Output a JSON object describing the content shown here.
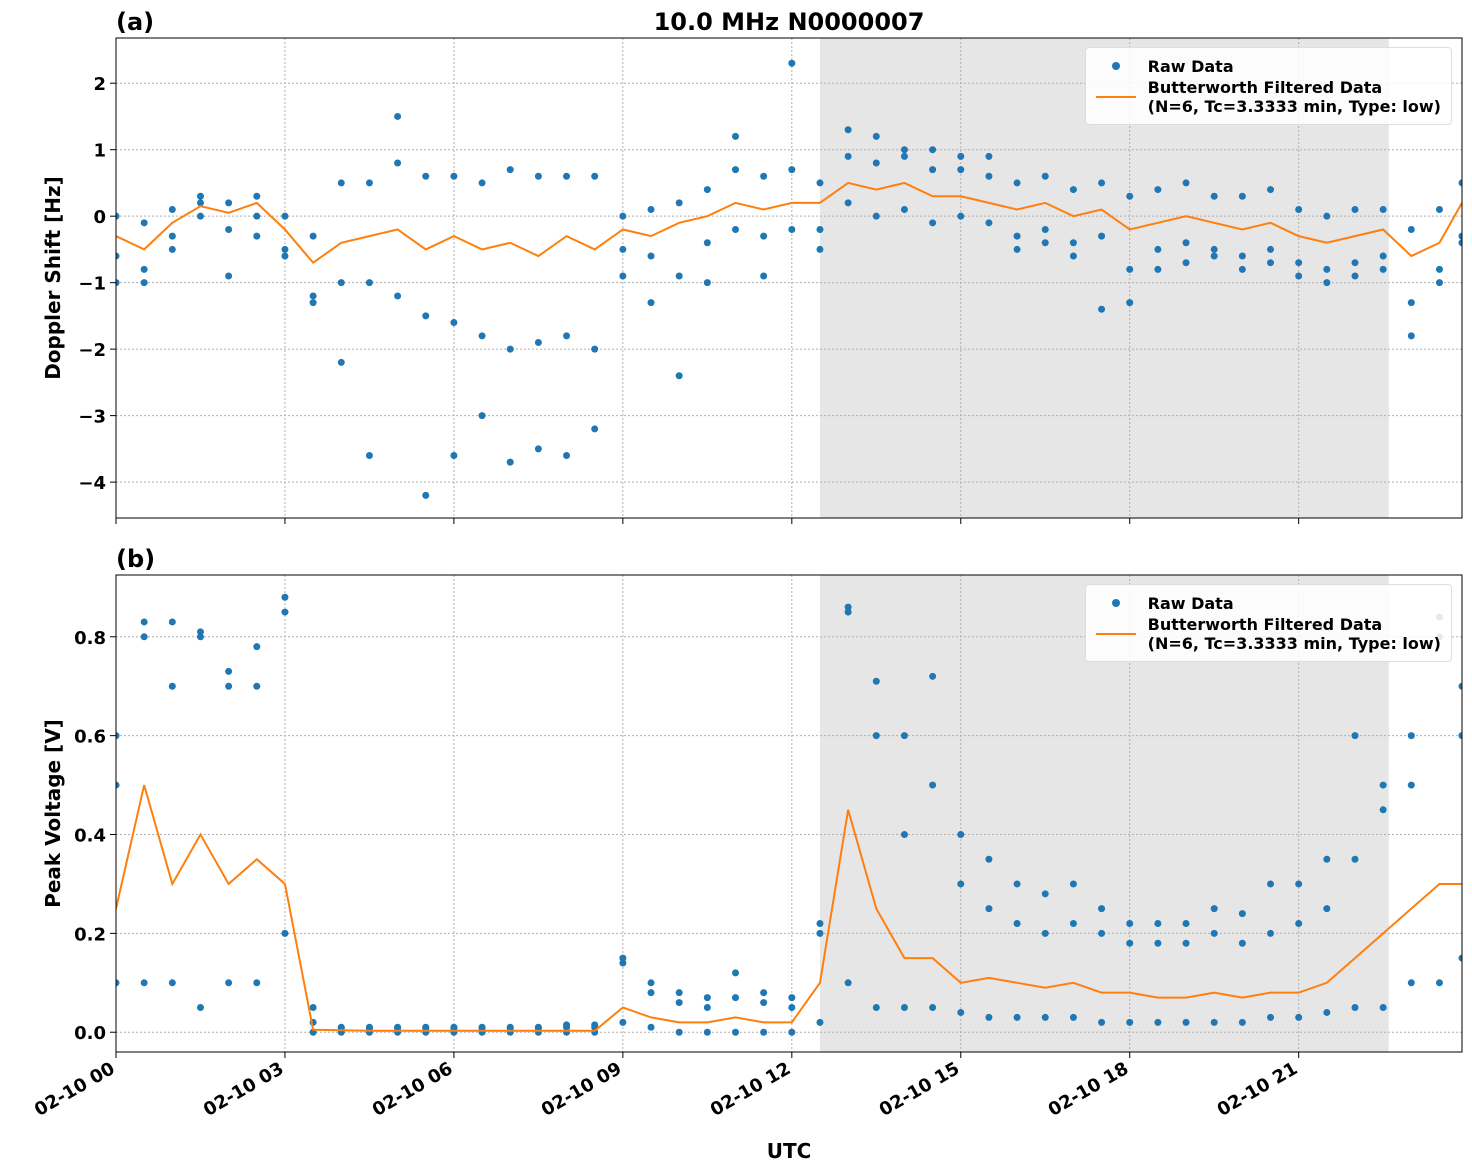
{
  "chart_data": [
    {
      "type": "line",
      "title": "10.0 MHz N0000007",
      "panel_label": "(a)",
      "ylabel": "Doppler Shift [Hz]",
      "xlim": [
        0,
        23.9
      ],
      "ylim": [
        -4.54,
        2.68
      ],
      "grid": true,
      "legend": "upper right",
      "shade": [
        12.5,
        22.6
      ],
      "xtick_labels": false,
      "xticks": [
        0,
        3,
        6,
        9,
        12,
        15,
        18,
        21
      ],
      "yticks": [
        {
          "value": -4,
          "label": "−4"
        },
        {
          "value": -3,
          "label": "−3"
        },
        {
          "value": -2,
          "label": "−2"
        },
        {
          "value": -1,
          "label": "−1"
        },
        0,
        1,
        2
      ],
      "x": [
        0,
        0.5,
        1,
        1.5,
        2,
        2.5,
        3,
        3.5,
        4,
        4.5,
        5,
        5.5,
        6,
        6.5,
        7,
        7.5,
        8,
        8.5,
        9,
        9.5,
        10,
        10.5,
        11,
        11.5,
        12,
        12.5,
        13,
        13.5,
        14,
        14.5,
        15,
        15.5,
        16,
        16.5,
        17,
        17.5,
        18,
        18.5,
        19,
        19.5,
        20,
        20.5,
        21,
        21.5,
        22,
        22.5,
        23,
        23.5,
        23.9
      ],
      "series": [
        {
          "name": "Raw Data",
          "style": "markers",
          "color": "#1f77b4",
          "values": [
            [
              0,
              -0.6,
              -1.0
            ],
            [
              -0.1,
              -0.8,
              -1.0
            ],
            [
              0.1,
              -0.3,
              -0.5
            ],
            [
              0.3,
              0,
              0.2
            ],
            [
              0.2,
              -0.2,
              -0.9
            ],
            [
              0.3,
              0,
              -0.3
            ],
            [
              0,
              -0.5,
              -0.6
            ],
            [
              -0.3,
              -1.2,
              -1.3
            ],
            [
              0.5,
              -1.0,
              -2.2
            ],
            [
              0.5,
              -1.0,
              -3.6
            ],
            [
              0.8,
              -1.2,
              1.5
            ],
            [
              0.6,
              -1.5,
              -4.2
            ],
            [
              0.6,
              -1.6,
              -3.6
            ],
            [
              0.5,
              -1.8,
              -3.0
            ],
            [
              0.7,
              -2.0,
              -3.7
            ],
            [
              0.6,
              -1.9,
              -3.5
            ],
            [
              0.6,
              -1.8,
              -3.6
            ],
            [
              0.6,
              -2.0,
              -3.2
            ],
            [
              0,
              -0.5,
              -0.9
            ],
            [
              0.1,
              -0.6,
              -1.3
            ],
            [
              0.2,
              -0.9,
              -2.4
            ],
            [
              0.4,
              -0.4,
              -1.0
            ],
            [
              0.7,
              -0.2,
              1.2
            ],
            [
              0.6,
              -0.3,
              -0.9
            ],
            [
              0.7,
              -0.2,
              2.3
            ],
            [
              0.5,
              -0.2,
              -0.5
            ],
            [
              0.9,
              0.2,
              1.3
            ],
            [
              0.8,
              0,
              1.2
            ],
            [
              0.9,
              0.1,
              1.0
            ],
            [
              0.7,
              -0.1,
              1.0
            ],
            [
              0.7,
              0,
              0.9
            ],
            [
              0.6,
              -0.1,
              0.9
            ],
            [
              0.5,
              -0.3,
              -0.5
            ],
            [
              0.6,
              -0.2,
              -0.4
            ],
            [
              0.4,
              -0.4,
              -0.6
            ],
            [
              0.5,
              -0.3,
              -1.4
            ],
            [
              0.3,
              -0.8,
              -1.3
            ],
            [
              0.4,
              -0.5,
              -0.8
            ],
            [
              0.5,
              -0.4,
              -0.7
            ],
            [
              0.3,
              -0.5,
              -0.6
            ],
            [
              0.3,
              -0.6,
              -0.8
            ],
            [
              0.4,
              -0.5,
              -0.7
            ],
            [
              0.1,
              -0.7,
              -0.9
            ],
            [
              0,
              -0.8,
              -1.0
            ],
            [
              0.1,
              -0.7,
              -0.9
            ],
            [
              0.1,
              -0.6,
              -0.8
            ],
            [
              -0.2,
              -1.3,
              -1.8
            ],
            [
              0.1,
              -0.8,
              -1.0
            ],
            [
              0.5,
              -0.3,
              -0.4
            ]
          ]
        },
        {
          "name": "Butterworth Filtered Data\n(N=6, Tc=3.3333 min, Type: low)",
          "style": "line",
          "color": "#ff7f0e",
          "values": [
            -0.3,
            -0.5,
            -0.1,
            0.15,
            0.05,
            0.2,
            -0.2,
            -0.7,
            -0.4,
            -0.3,
            -0.2,
            -0.5,
            -0.3,
            -0.5,
            -0.4,
            -0.6,
            -0.3,
            -0.5,
            -0.2,
            -0.3,
            -0.1,
            0,
            0.2,
            0.1,
            0.2,
            0.2,
            0.5,
            0.4,
            0.5,
            0.3,
            0.3,
            0.2,
            0.1,
            0.2,
            0,
            0.1,
            -0.2,
            -0.1,
            0,
            -0.1,
            -0.2,
            -0.1,
            -0.3,
            -0.4,
            -0.3,
            -0.2,
            -0.6,
            -0.4,
            0.2
          ]
        }
      ]
    },
    {
      "type": "line",
      "panel_label": "(b)",
      "ylabel": "Peak Voltage [V]",
      "xlabel": "UTC",
      "xlim": [
        0,
        23.9
      ],
      "ylim": [
        -0.04,
        0.925
      ],
      "grid": true,
      "legend": "upper right",
      "shade": [
        12.5,
        22.6
      ],
      "xticks": [
        {
          "value": 0,
          "label": "02-10 00"
        },
        {
          "value": 3,
          "label": "02-10 03"
        },
        {
          "value": 6,
          "label": "02-10 06"
        },
        {
          "value": 9,
          "label": "02-10 09"
        },
        {
          "value": 12,
          "label": "02-10 12"
        },
        {
          "value": 15,
          "label": "02-10 15"
        },
        {
          "value": 18,
          "label": "02-10 18"
        },
        {
          "value": 21,
          "label": "02-10 21"
        }
      ],
      "yticks": [
        {
          "value": 0,
          "label": "0.0"
        },
        0.2,
        0.4,
        0.6,
        0.8
      ],
      "x": [
        0,
        0.5,
        1,
        1.5,
        2,
        2.5,
        3,
        3.5,
        4,
        4.5,
        5,
        5.5,
        6,
        6.5,
        7,
        7.5,
        8,
        8.5,
        9,
        9.5,
        10,
        10.5,
        11,
        11.5,
        12,
        12.5,
        13,
        13.5,
        14,
        14.5,
        15,
        15.5,
        16,
        16.5,
        17,
        17.5,
        18,
        18.5,
        19,
        19.5,
        20,
        20.5,
        21,
        21.5,
        22,
        22.5,
        23,
        23.5,
        23.9
      ],
      "series": [
        {
          "name": "Raw Data",
          "style": "markers",
          "color": "#1f77b4",
          "values": [
            [
              0.5,
              0.1,
              0.6
            ],
            [
              0.8,
              0.1,
              0.83
            ],
            [
              0.7,
              0.1,
              0.83
            ],
            [
              0.8,
              0.05,
              0.81
            ],
            [
              0.7,
              0.1,
              0.73
            ],
            [
              0.7,
              0.1,
              0.78
            ],
            [
              0.85,
              0.2,
              0.88
            ],
            [
              0.02,
              0,
              0.05
            ],
            [
              0.008,
              0,
              0.01
            ],
            [
              0.008,
              0,
              0.01
            ],
            [
              0.008,
              0,
              0.01
            ],
            [
              0.008,
              0,
              0.01
            ],
            [
              0.008,
              0,
              0.01
            ],
            [
              0.008,
              0,
              0.01
            ],
            [
              0.008,
              0,
              0.01
            ],
            [
              0.008,
              0,
              0.01
            ],
            [
              0.01,
              0,
              0.015
            ],
            [
              0.01,
              0,
              0.015
            ],
            [
              0.14,
              0.02,
              0.15
            ],
            [
              0.08,
              0.01,
              0.1
            ],
            [
              0.06,
              0,
              0.08
            ],
            [
              0.05,
              0,
              0.07
            ],
            [
              0.12,
              0,
              0.07
            ],
            [
              0.06,
              0,
              0.08
            ],
            [
              0.05,
              0,
              0.07
            ],
            [
              0.2,
              0.02,
              0.22
            ],
            [
              0.85,
              0.1,
              0.86
            ],
            [
              0.6,
              0.05,
              0.71
            ],
            [
              0.4,
              0.05,
              0.6
            ],
            [
              0.5,
              0.05,
              0.72
            ],
            [
              0.3,
              0.04,
              0.4
            ],
            [
              0.25,
              0.03,
              0.35
            ],
            [
              0.22,
              0.03,
              0.3
            ],
            [
              0.2,
              0.03,
              0.28
            ],
            [
              0.22,
              0.03,
              0.3
            ],
            [
              0.2,
              0.02,
              0.25
            ],
            [
              0.18,
              0.02,
              0.22
            ],
            [
              0.18,
              0.02,
              0.22
            ],
            [
              0.18,
              0.02,
              0.22
            ],
            [
              0.2,
              0.02,
              0.25
            ],
            [
              0.18,
              0.02,
              0.24
            ],
            [
              0.2,
              0.03,
              0.3
            ],
            [
              0.22,
              0.03,
              0.3
            ],
            [
              0.25,
              0.04,
              0.35
            ],
            [
              0.35,
              0.05,
              0.6
            ],
            [
              0.45,
              0.05,
              0.5
            ],
            [
              0.5,
              0.1,
              0.6
            ],
            [
              0.8,
              0.1,
              0.84
            ],
            [
              0.6,
              0.15,
              0.7
            ]
          ]
        },
        {
          "name": "Butterworth Filtered Data\n(N=6, Tc=3.3333 min, Type: low)",
          "style": "line",
          "color": "#ff7f0e",
          "values": [
            0.25,
            0.5,
            0.3,
            0.4,
            0.3,
            0.35,
            0.3,
            0.005,
            0.004,
            0.003,
            0.003,
            0.003,
            0.003,
            0.003,
            0.003,
            0.003,
            0.003,
            0.003,
            0.05,
            0.03,
            0.02,
            0.02,
            0.03,
            0.02,
            0.02,
            0.1,
            0.45,
            0.25,
            0.15,
            0.15,
            0.1,
            0.11,
            0.1,
            0.09,
            0.1,
            0.08,
            0.08,
            0.07,
            0.07,
            0.08,
            0.07,
            0.08,
            0.08,
            0.1,
            0.15,
            0.2,
            0.25,
            0.3,
            0.3
          ]
        }
      ]
    }
  ]
}
